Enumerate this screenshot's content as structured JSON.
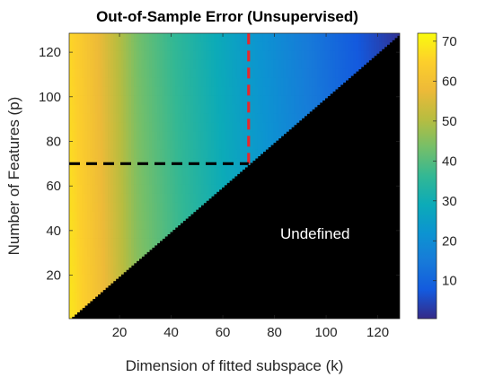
{
  "chart_data": {
    "type": "heatmap",
    "title": "Out-of-Sample Error (Unsupervised)",
    "xlabel": "Dimension of fitted subspace (k)",
    "ylabel": "Number of Features (p)",
    "xlim": [
      0.5,
      128.5
    ],
    "ylim": [
      0.5,
      128.5
    ],
    "xticks": [
      20,
      40,
      60,
      80,
      100,
      120
    ],
    "yticks": [
      20,
      40,
      60,
      80,
      100,
      120
    ],
    "colorbar": {
      "limits": [
        0.5,
        72
      ],
      "ticks": [
        10,
        20,
        30,
        40,
        50,
        60,
        70
      ],
      "colormap": "parula"
    },
    "undefined_region": "k > p",
    "undefined_color": "#000000",
    "annotation": "Undefined",
    "reference_lines": [
      {
        "orientation": "vertical",
        "x": 70,
        "y_from": 70,
        "y_to": 128.5,
        "color": "#e8282b",
        "style": "dashed"
      },
      {
        "orientation": "horizontal",
        "y": 70,
        "x_from": 0.5,
        "x_to": 70,
        "color": "#000000",
        "style": "dashed"
      }
    ]
  }
}
